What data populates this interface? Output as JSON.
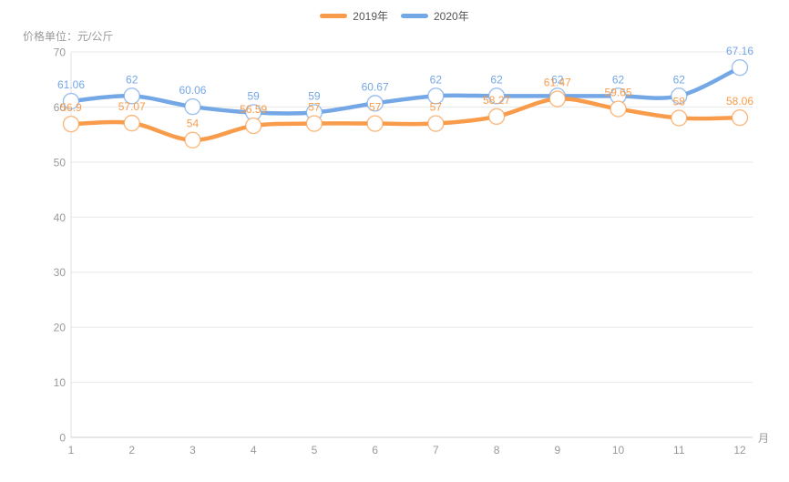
{
  "legend": {
    "items": [
      {
        "label": "2019年",
        "color": "#f89c4b"
      },
      {
        "label": "2020年",
        "color": "#74a7e6"
      }
    ]
  },
  "y_axis_title": "价格单位：元/公斤",
  "chart_data": {
    "type": "line",
    "smooth": true,
    "x_categories": [
      "1",
      "2",
      "3",
      "4",
      "5",
      "6",
      "7",
      "8",
      "9",
      "10",
      "11",
      "12"
    ],
    "x_unit": "月",
    "ylim": [
      0,
      70
    ],
    "ytick_step": 10,
    "grid": true,
    "legend_position": "top-center",
    "point_style": "hollow-circle",
    "series": [
      {
        "name": "2020年",
        "color": "#74a7e6",
        "values": [
          61.06,
          62,
          60.06,
          59,
          59,
          60.67,
          62,
          62,
          62,
          62,
          62,
          67.16
        ]
      },
      {
        "name": "2019年",
        "color": "#f89c4b",
        "values": [
          56.9,
          57.07,
          54,
          56.59,
          57,
          57,
          57,
          58.27,
          61.47,
          59.65,
          58,
          58.06
        ]
      }
    ],
    "axis_text_color": "#999999",
    "gridline_color": "#e8e8e8",
    "axis_line_color": "#cccccc",
    "yaxis_line_color": "#e0e0e0"
  }
}
